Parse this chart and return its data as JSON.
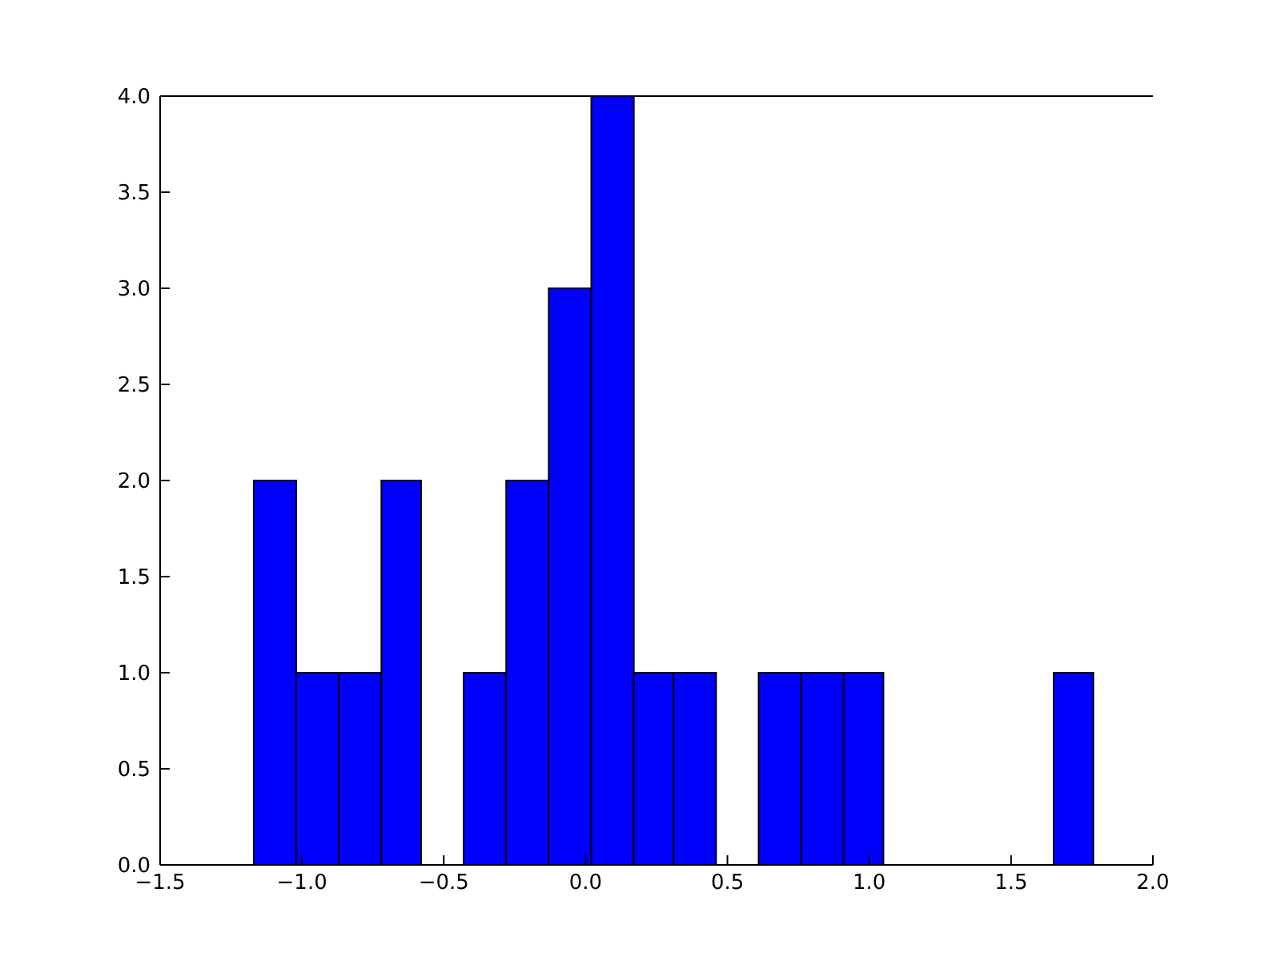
{
  "chart_data": {
    "type": "histogram",
    "color": "#0000ff",
    "bins": [
      -1.17,
      -1.02,
      -0.87,
      -0.72,
      -0.58,
      -0.43,
      -0.28,
      -0.13,
      0.02,
      0.17,
      0.31,
      0.46,
      0.61,
      0.76,
      0.91,
      1.05,
      1.65,
      1.79
    ],
    "values": [
      2,
      1,
      1,
      2,
      0,
      1,
      2,
      3,
      4,
      1,
      1,
      0,
      1,
      1,
      1,
      0,
      1
    ],
    "xlim": [
      -1.5,
      2.0
    ],
    "xticks": [
      {
        "value": -1.5,
        "label": "−1.5"
      },
      {
        "value": -1.0,
        "label": "−1.0"
      },
      {
        "value": -0.5,
        "label": "−0.5"
      },
      {
        "value": 0,
        "label": "0.0"
      },
      {
        "value": 0.5,
        "label": "0.5"
      },
      {
        "value": 1.0,
        "label": "1.0"
      },
      {
        "value": 1.5,
        "label": "1.5"
      },
      {
        "value": 2.0,
        "label": "2.0"
      }
    ],
    "ylim": [
      0,
      4
    ],
    "yticks": [
      {
        "value": 0,
        "label": "0.0"
      },
      {
        "value": 0.5,
        "label": "0.5"
      },
      {
        "value": 1,
        "label": "1.0"
      },
      {
        "value": 1.5,
        "label": "1.5"
      },
      {
        "value": 2,
        "label": "2.0"
      },
      {
        "value": 2.5,
        "label": "2.5"
      },
      {
        "value": 3,
        "label": "3.0"
      },
      {
        "value": 3.5,
        "label": "3.5"
      },
      {
        "value": 4,
        "label": "4.0"
      }
    ]
  }
}
